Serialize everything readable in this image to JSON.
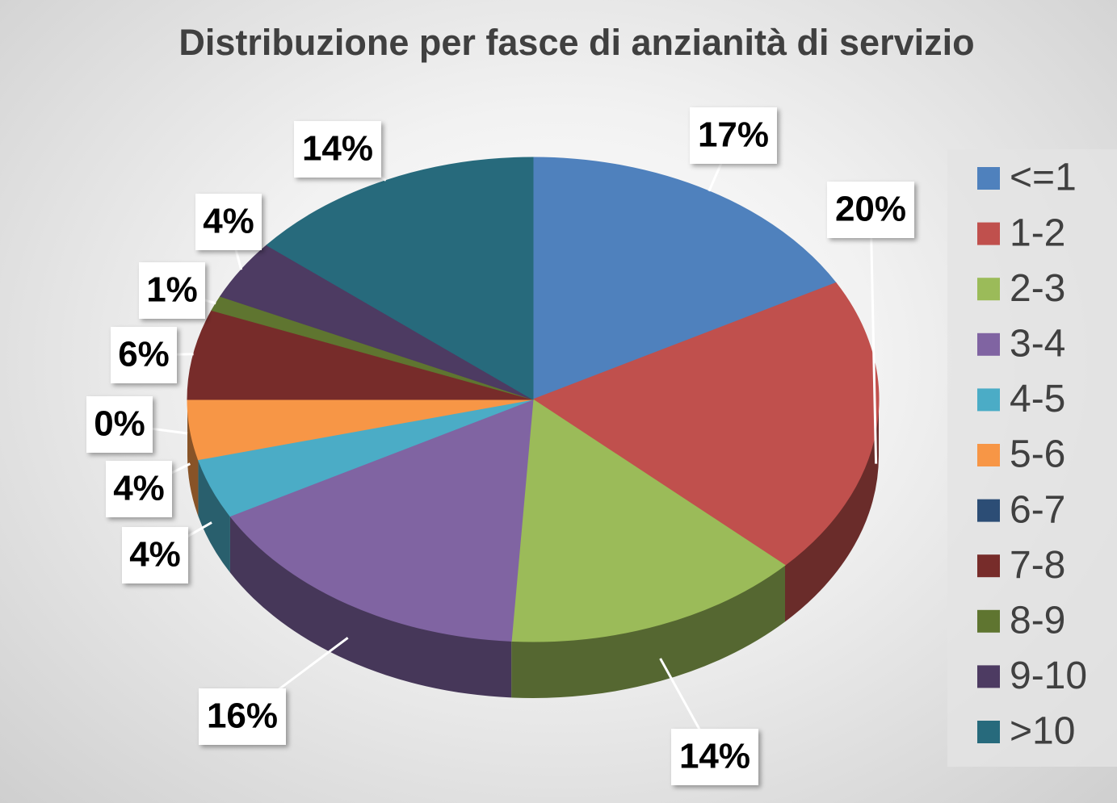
{
  "chart_data": {
    "type": "pie3d",
    "title": "Distribuzione per fasce di anzianità di servizio",
    "categories": [
      "<=1",
      "1-2",
      "2-3",
      "3-4",
      "4-5",
      "5-6",
      "6-7",
      "7-8",
      "8-9",
      "9-10",
      ">10"
    ],
    "values": [
      17,
      20,
      14,
      16,
      4,
      4,
      0,
      6,
      1,
      4,
      14
    ],
    "value_labels": [
      "17%",
      "20%",
      "14%",
      "16%",
      "4%",
      "4%",
      "0%",
      "6%",
      "1%",
      "4%",
      "14%"
    ],
    "colors": [
      "#4f81bd",
      "#c0504d",
      "#9bbb59",
      "#8064a2",
      "#4bacc6",
      "#f79646",
      "#2c4d75",
      "#772c2a",
      "#5f7530",
      "#4d3b62",
      "#276a7c"
    ],
    "legend": "right"
  }
}
